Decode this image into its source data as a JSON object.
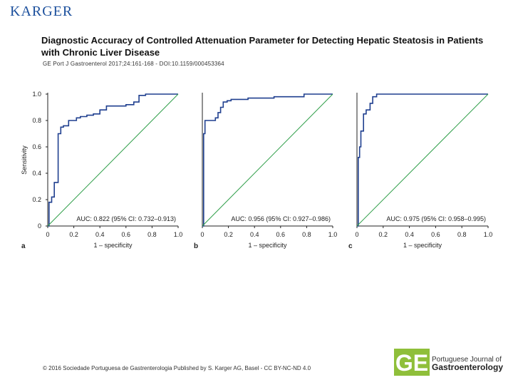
{
  "header": {
    "publisher": "KARGER",
    "title": "Diagnostic Accuracy of Controlled Attenuation Parameter for Detecting Hepatic Steatosis in Patients with Chronic Liver Disease",
    "citation": "GE Port J Gastroenterol 2017;24:161-168 - DOI:10.1159/000453364"
  },
  "footer": {
    "copyright": "© 2016 Sociedade Portuguesa de Gastrenterologia Published by S. Karger AG, Basel - CC BY-NC-ND 4.0",
    "journal_line1": "Portuguese Journal of",
    "journal_line2": "Gastroenterology"
  },
  "colors": {
    "roc_line": "#1f3f8f",
    "reference_line": "#2e9e48",
    "axis": "#222222",
    "brand": "#1b4f9c",
    "journal_green": "#8fbf3a"
  },
  "chart_data": [
    {
      "type": "line",
      "panel_label": "a",
      "xlabel": "1 – specificity",
      "ylabel": "Sensitivity",
      "xlim": [
        0,
        1.0
      ],
      "ylim": [
        0,
        1.0
      ],
      "x_ticks": [
        "0",
        "0.2",
        "0.4",
        "0.6",
        "0.8",
        "1.0"
      ],
      "y_ticks": [
        "0",
        "0.2",
        "0.4",
        "0.6",
        "0.8",
        "1.0"
      ],
      "annotation": "AUC: 0.822 (95% CI: 0.732–0.913)",
      "series": [
        {
          "name": "ROC",
          "x": [
            0,
            0.01,
            0.01,
            0.03,
            0.03,
            0.05,
            0.05,
            0.08,
            0.08,
            0.1,
            0.1,
            0.12,
            0.12,
            0.16,
            0.16,
            0.22,
            0.22,
            0.25,
            0.25,
            0.3,
            0.3,
            0.35,
            0.35,
            0.4,
            0.4,
            0.45,
            0.45,
            0.6,
            0.6,
            0.66,
            0.66,
            0.7,
            0.7,
            0.75,
            0.75,
            1.0
          ],
          "y": [
            0,
            0,
            0.18,
            0.18,
            0.22,
            0.22,
            0.33,
            0.33,
            0.7,
            0.7,
            0.75,
            0.75,
            0.76,
            0.76,
            0.8,
            0.8,
            0.82,
            0.82,
            0.83,
            0.83,
            0.84,
            0.84,
            0.85,
            0.85,
            0.88,
            0.88,
            0.91,
            0.91,
            0.92,
            0.92,
            0.94,
            0.94,
            0.99,
            0.99,
            1.0,
            1.0
          ]
        },
        {
          "name": "Reference",
          "x": [
            0,
            1.0
          ],
          "y": [
            0,
            1.0
          ]
        }
      ]
    },
    {
      "type": "line",
      "panel_label": "b",
      "xlabel": "1 – specificity",
      "ylabel": "",
      "xlim": [
        0,
        1.0
      ],
      "ylim": [
        0,
        1.0
      ],
      "x_ticks": [
        "0",
        "0.2",
        "0.4",
        "0.6",
        "0.8",
        "1.0"
      ],
      "y_ticks": [],
      "annotation": "AUC: 0.956 (95% CI: 0.927–0.986)",
      "series": [
        {
          "name": "ROC",
          "x": [
            0,
            0.01,
            0.01,
            0.02,
            0.02,
            0.1,
            0.1,
            0.12,
            0.12,
            0.14,
            0.14,
            0.16,
            0.16,
            0.19,
            0.19,
            0.22,
            0.22,
            0.35,
            0.35,
            0.55,
            0.55,
            0.78,
            0.78,
            1.0
          ],
          "y": [
            0,
            0,
            0.7,
            0.7,
            0.8,
            0.8,
            0.82,
            0.82,
            0.86,
            0.86,
            0.9,
            0.9,
            0.94,
            0.94,
            0.95,
            0.95,
            0.96,
            0.96,
            0.97,
            0.97,
            0.98,
            0.98,
            1.0,
            1.0
          ]
        },
        {
          "name": "Reference",
          "x": [
            0,
            1.0
          ],
          "y": [
            0,
            1.0
          ]
        }
      ]
    },
    {
      "type": "line",
      "panel_label": "c",
      "xlabel": "1 – specificity",
      "ylabel": "",
      "xlim": [
        0,
        1.0
      ],
      "ylim": [
        0,
        1.0
      ],
      "x_ticks": [
        "0",
        "0.2",
        "0.4",
        "0.6",
        "0.8",
        "1.0"
      ],
      "y_ticks": [],
      "annotation": "AUC: 0.975 (95% CI: 0.958–0.995)",
      "series": [
        {
          "name": "ROC",
          "x": [
            0,
            0.01,
            0.01,
            0.02,
            0.02,
            0.03,
            0.03,
            0.05,
            0.05,
            0.07,
            0.07,
            0.1,
            0.1,
            0.12,
            0.12,
            0.15,
            0.15,
            1.0
          ],
          "y": [
            0,
            0,
            0.52,
            0.52,
            0.6,
            0.6,
            0.72,
            0.72,
            0.85,
            0.85,
            0.88,
            0.88,
            0.93,
            0.93,
            0.98,
            0.98,
            1.0,
            1.0
          ]
        },
        {
          "name": "Reference",
          "x": [
            0,
            1.0
          ],
          "y": [
            0,
            1.0
          ]
        }
      ]
    }
  ]
}
